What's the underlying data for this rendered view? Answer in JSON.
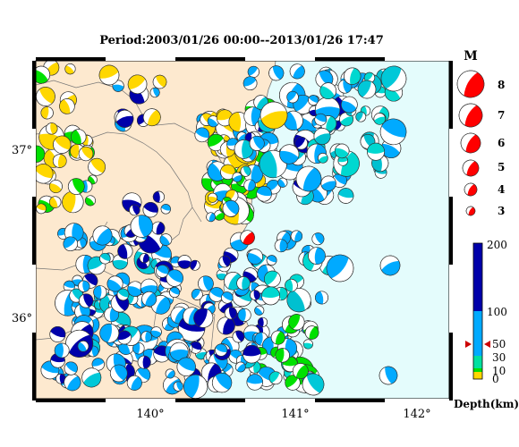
{
  "title": "Period:2003/01/26 00:00--2013/01/26 17:47",
  "colors": {
    "land": "#fde9cf",
    "sea": "#e4fcfc",
    "coast": "#777777",
    "event_highlight": "#ff0000",
    "depth_bar": {
      "shallow": "#ffd700",
      "mid": "#00e000",
      "deep": "#00aaff",
      "verydeep": "#0000aa"
    }
  },
  "axes": {
    "x_ticks": [
      "140°",
      "141°",
      "142°"
    ],
    "y_ticks": [
      "37°",
      "36°"
    ]
  },
  "magnitude_legend": {
    "header": "M",
    "entries": [
      "8",
      "7",
      "6",
      "5",
      "4",
      "3"
    ]
  },
  "depth_legend": {
    "title": "Depth(km)",
    "ticks": [
      "200",
      "100",
      "50",
      "30",
      "10",
      "0"
    ]
  },
  "highlighted_event": {
    "lon": 140.67,
    "lat": 36.47,
    "icon": "beachball-icon"
  },
  "beachball_icon": "beachball-icon"
}
